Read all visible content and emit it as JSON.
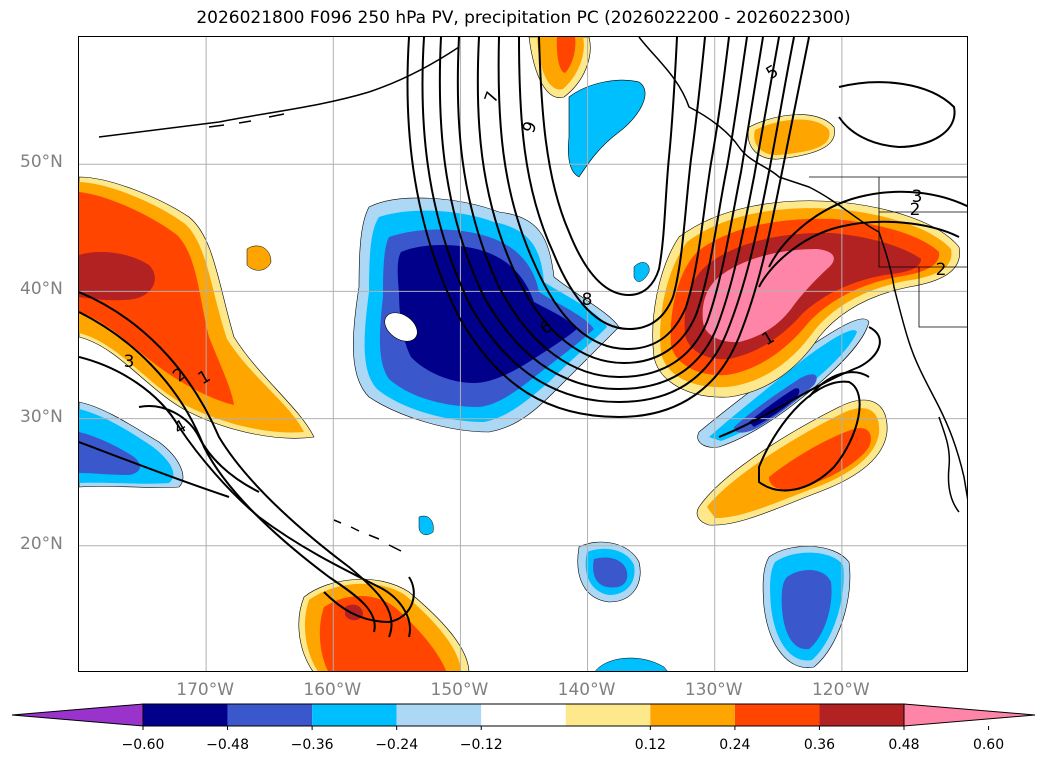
{
  "title": "2026021800 F096 250 hPa PV, precipitation PC (2026022200 - 2026022300)",
  "map": {
    "extent_lon": [
      -180,
      -110
    ],
    "extent_lat": [
      10,
      60
    ],
    "gridlines": true,
    "lat_ticks": [
      {
        "value": 50,
        "label": "50°N"
      },
      {
        "value": 40,
        "label": "40°N"
      },
      {
        "value": 30,
        "label": "30°N"
      },
      {
        "value": 20,
        "label": "20°N"
      }
    ],
    "lon_ticks": [
      {
        "value": -170,
        "label": "170°W"
      },
      {
        "value": -160,
        "label": "160°W"
      },
      {
        "value": -150,
        "label": "150°W"
      },
      {
        "value": -140,
        "label": "140°W"
      },
      {
        "value": -130,
        "label": "130°W"
      },
      {
        "value": -120,
        "label": "120°W"
      }
    ],
    "pv_contour_labels": [
      "1",
      "2",
      "3",
      "4",
      "5",
      "6",
      "7",
      "8",
      "9",
      "2",
      "3",
      "2",
      "1"
    ]
  },
  "colorbar": {
    "orientation": "horizontal",
    "extend": "both",
    "tick_labels": [
      "−0.60",
      "−0.48",
      "−0.36",
      "−0.24",
      "−0.12",
      "0.12",
      "0.24",
      "0.36",
      "0.48",
      "0.60"
    ],
    "colors": [
      "#9933cc",
      "#00008b",
      "#3a57cc",
      "#00bfff",
      "#add8f5",
      "#ffffff",
      "#fde98b",
      "#ffa500",
      "#ff4500",
      "#b22222",
      "#ff85a8"
    ]
  },
  "colors": {
    "coast": "#000000",
    "gridline": "#b0b0b0",
    "label_gray": "#808080"
  }
}
